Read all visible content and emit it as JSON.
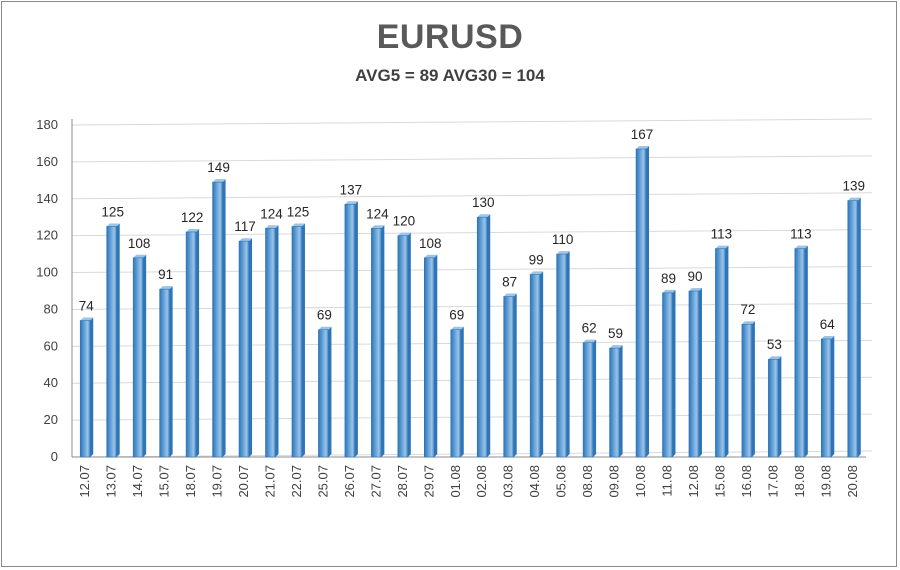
{
  "chart_data": {
    "type": "bar",
    "title": "EURUSD",
    "subtitle": "AVG5 = 89 AVG30 = 104",
    "categories": [
      "12.07",
      "13.07",
      "14.07",
      "15.07",
      "18.07",
      "19.07",
      "20.07",
      "21.07",
      "22.07",
      "25.07",
      "26.07",
      "27.07",
      "28.07",
      "29.07",
      "01.08",
      "02.08",
      "03.08",
      "04.08",
      "05.08",
      "08.08",
      "09.08",
      "10.08",
      "11.08",
      "12.08",
      "15.08",
      "16.08",
      "17.08",
      "18.08",
      "19.08",
      "20.08"
    ],
    "values": [
      74,
      125,
      108,
      91,
      122,
      149,
      117,
      124,
      125,
      69,
      137,
      124,
      120,
      108,
      69,
      130,
      87,
      99,
      110,
      62,
      59,
      167,
      89,
      90,
      113,
      72,
      53,
      113,
      64,
      139
    ],
    "ylim": [
      0,
      180
    ],
    "yticks": [
      0,
      20,
      40,
      60,
      80,
      100,
      120,
      140,
      160,
      180
    ],
    "grid": true,
    "legend": "none",
    "colors": {
      "bar": "#5b9bd5",
      "bar_dark": "#2e75b6",
      "bar_light": "#9dc3e6",
      "grid": "#d9d9d9",
      "axis": "#8c8c8c"
    }
  }
}
